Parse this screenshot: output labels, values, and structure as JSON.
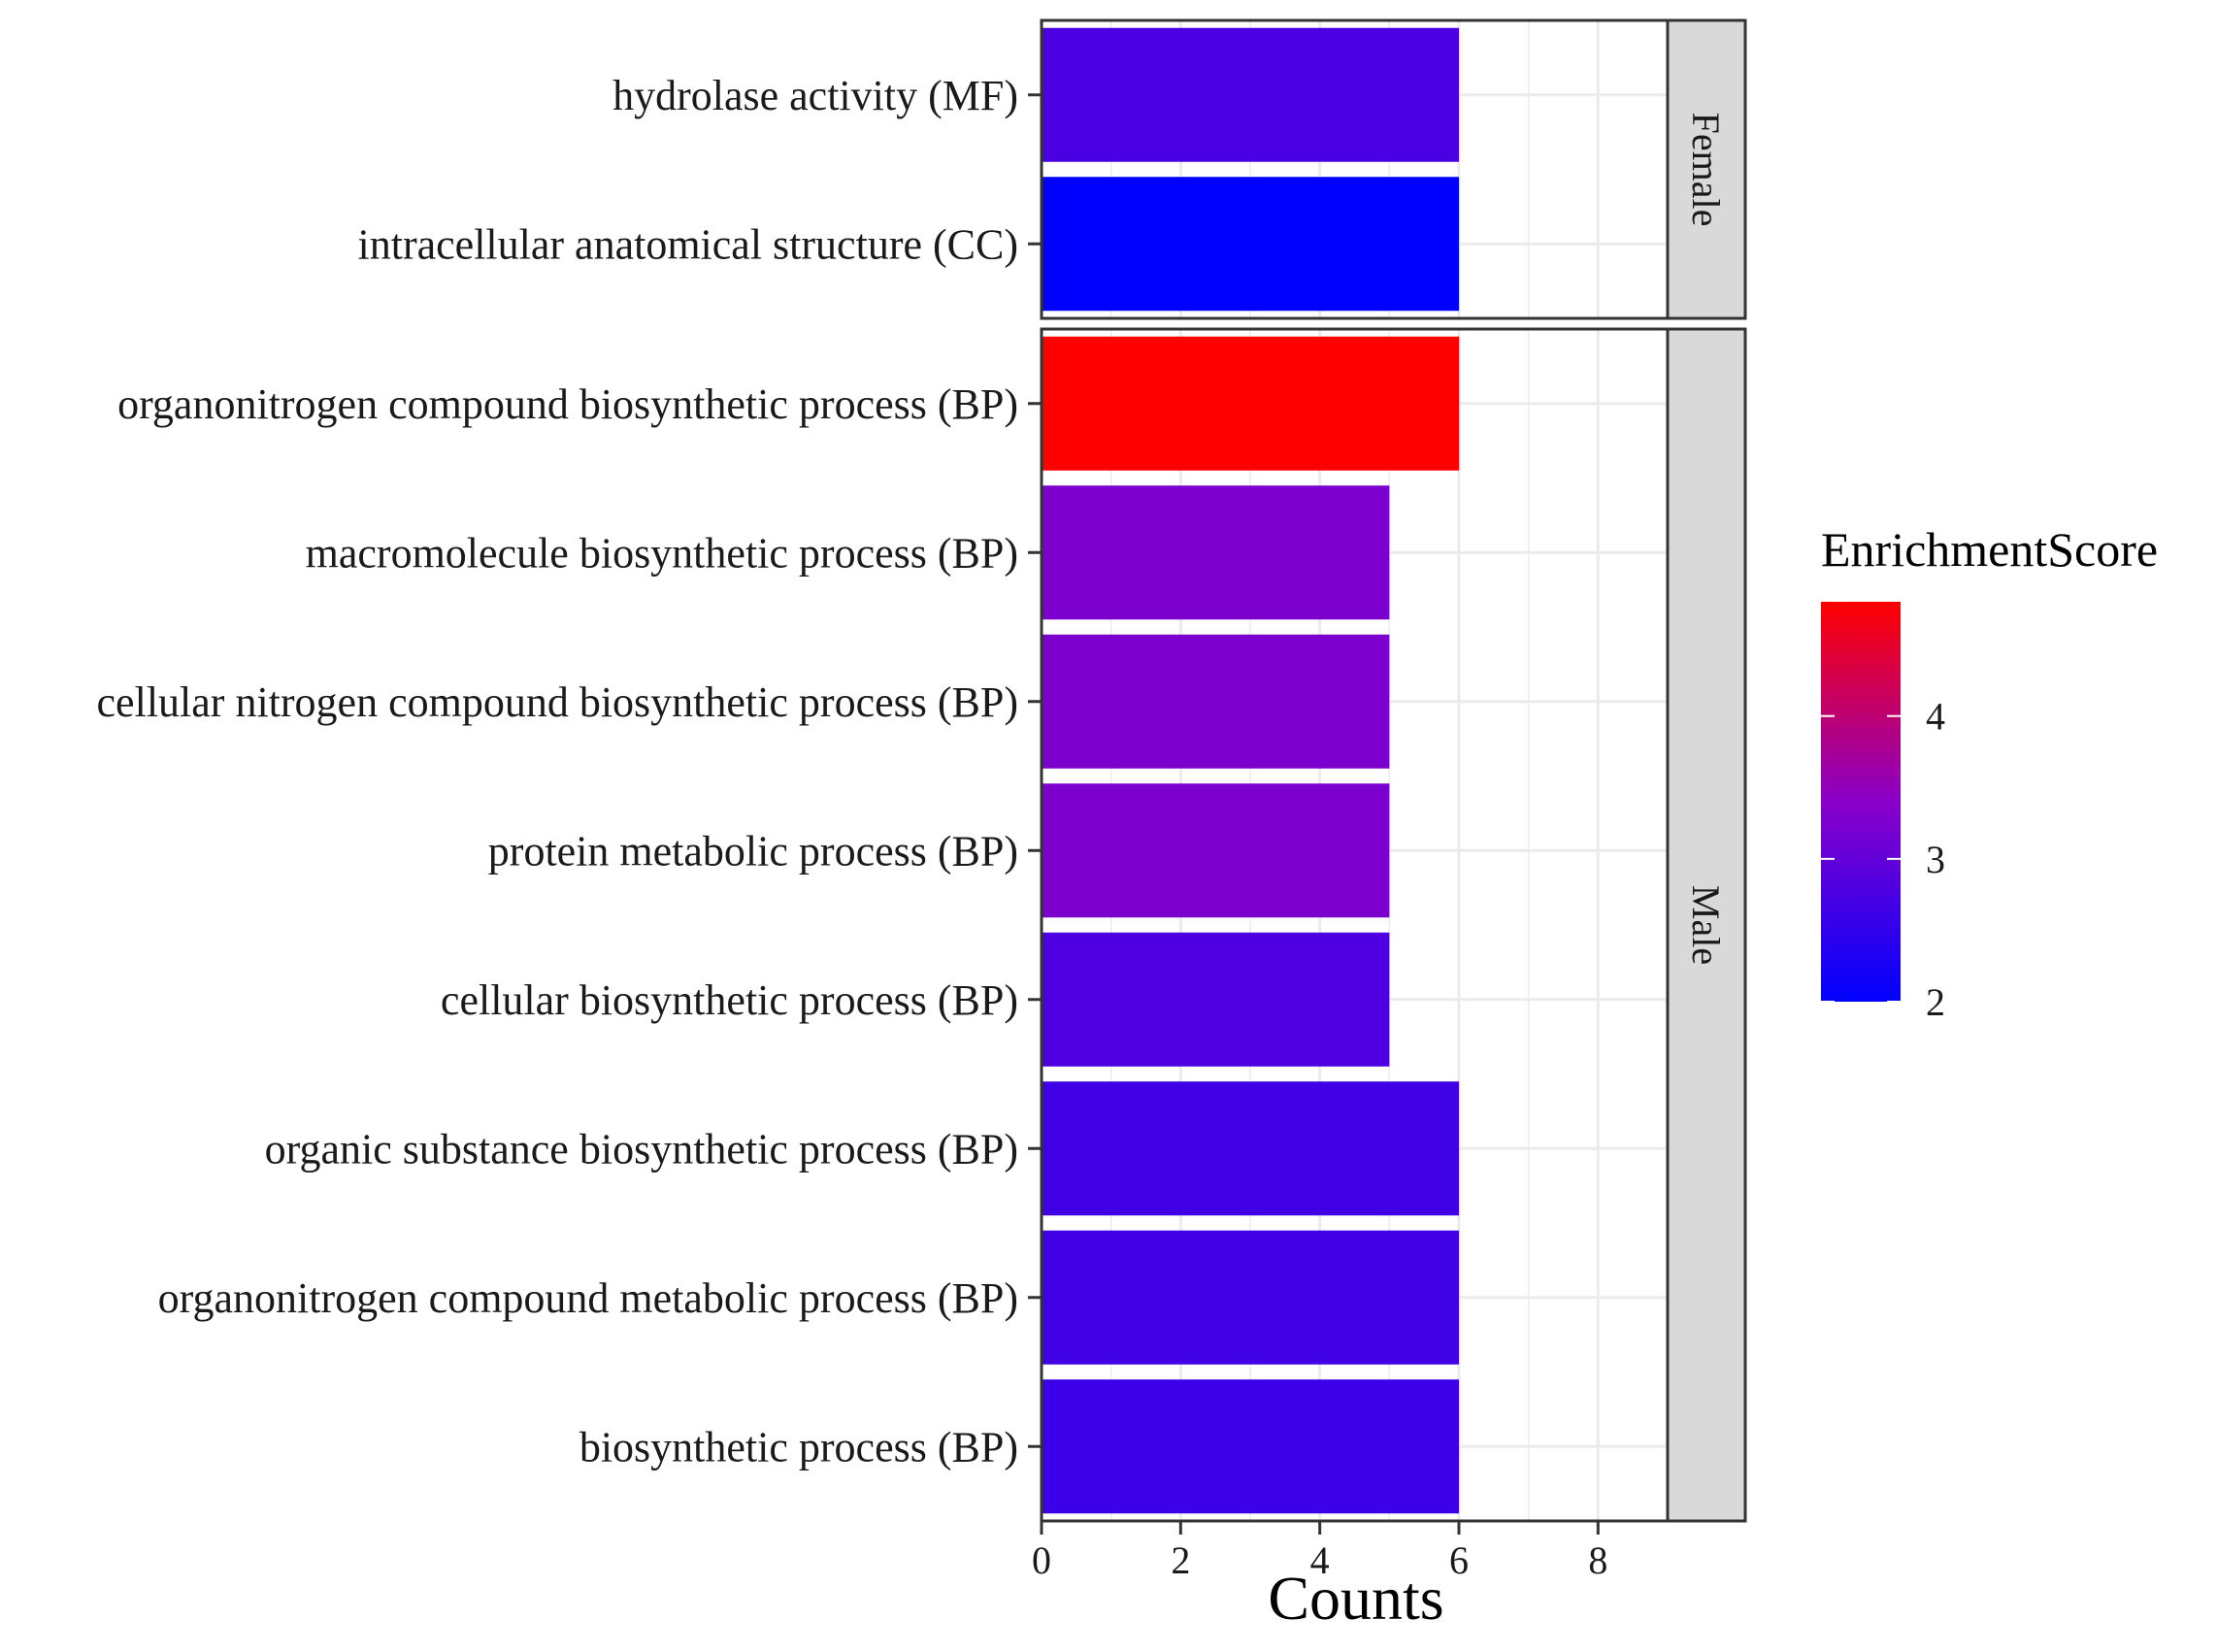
{
  "chart_data": {
    "type": "bar",
    "orientation": "horizontal",
    "xlabel": "Counts",
    "xlim": [
      0,
      9
    ],
    "x_ticks": [
      0,
      2,
      4,
      6,
      8
    ],
    "x_tick_labels": [
      "0",
      "2",
      "4",
      "6",
      "8"
    ],
    "color_scale": {
      "title": "EnrichmentScore",
      "low": 2,
      "mid": 3.4,
      "high": 4.8,
      "low_color": "#0000ff",
      "mid_color": "#8a00c8",
      "high_color": "#ff0000",
      "ticks": [
        2,
        3,
        4
      ],
      "tick_labels": [
        "2",
        "3",
        "4"
      ]
    },
    "facets": [
      {
        "name": "Female",
        "bars": [
          {
            "category": "hydrolase activity (MF)",
            "value": 6,
            "score": 2.75
          },
          {
            "category": "intracellular anatomical structure (CC)",
            "value": 6,
            "score": 2.0
          }
        ]
      },
      {
        "name": "Male",
        "bars": [
          {
            "category": "organonitrogen compound biosynthetic process (BP)",
            "value": 6,
            "score": 4.8
          },
          {
            "category": "macromolecule biosynthetic process (BP)",
            "value": 5,
            "score": 3.25
          },
          {
            "category": "cellular nitrogen compound biosynthetic process (BP)",
            "value": 5,
            "score": 3.25
          },
          {
            "category": "protein metabolic process (BP)",
            "value": 5,
            "score": 3.25
          },
          {
            "category": "cellular biosynthetic process (BP)",
            "value": 5,
            "score": 2.8
          },
          {
            "category": "organic substance biosynthetic process (BP)",
            "value": 6,
            "score": 2.65
          },
          {
            "category": "organonitrogen compound metabolic process (BP)",
            "value": 6,
            "score": 2.65
          },
          {
            "category": "biosynthetic process (BP)",
            "value": 6,
            "score": 2.6
          }
        ]
      }
    ]
  }
}
